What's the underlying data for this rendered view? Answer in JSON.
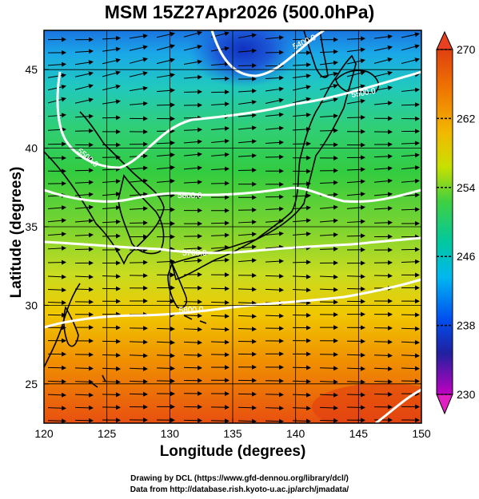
{
  "title": "MSM 15Z27Apr2026 (500.0hPa)",
  "map": {
    "xlabel": "Longitude (degrees)",
    "ylabel": "Latitude  (degrees)",
    "lon_range": [
      120,
      150
    ],
    "lat_range": [
      22.5,
      47.5
    ],
    "x_ticks": [
      120,
      125,
      130,
      135,
      140,
      145,
      150
    ],
    "y_ticks": [
      25,
      30,
      35,
      40,
      45
    ],
    "grid": true,
    "contour_labels": [
      "5400.0",
      "5500.0",
      "5600.0",
      "5700.0",
      "5800.0"
    ],
    "field": "temperature (K), shaded",
    "streamlines": "wind direction arrows"
  },
  "colorbar": {
    "min": 230,
    "max": 270,
    "tick_labels": [
      "270",
      "262",
      "254",
      "246",
      "238",
      "230"
    ],
    "tick_values": [
      270,
      262,
      254,
      246,
      238,
      230
    ],
    "colors": [
      "#e05a12",
      "#f2a000",
      "#f0e000",
      "#7ed400",
      "#00c864",
      "#00c8d0",
      "#0058ff",
      "#2020a0",
      "#b000c0"
    ]
  },
  "credits": {
    "line1": "Drawing by DCL (https://www.gfd-dennou.org/library/dcl/)",
    "line2": "Data from http://database.rish.kyoto-u.ac.jp/arch/jmadata/"
  }
}
